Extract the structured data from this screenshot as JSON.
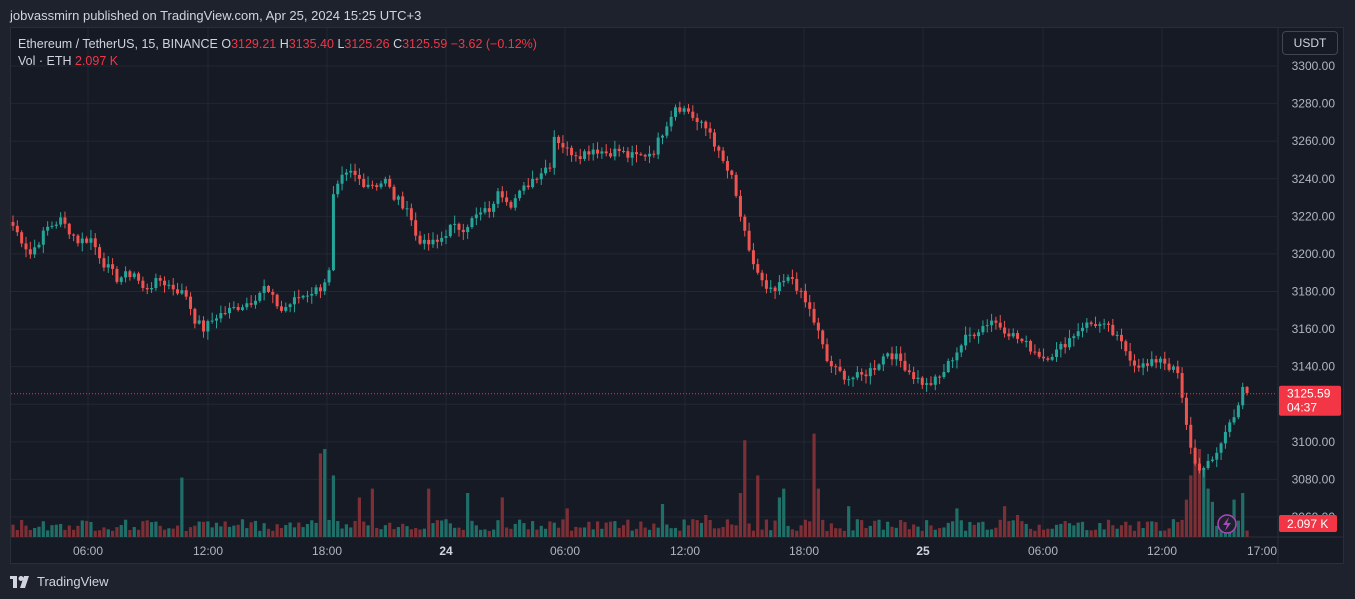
{
  "header": {
    "published_text": "jobvassmirn published on TradingView.com, Apr 25, 2024 15:25 UTC+3"
  },
  "legend": {
    "symbol": "Ethereum / TetherUS, 15, BINANCE",
    "o_label": "O",
    "o_value": "3129.21",
    "h_label": "H",
    "h_value": "3135.40",
    "l_label": "L",
    "l_value": "3125.26",
    "c_label": "C",
    "c_value": "3125.59",
    "change": "−3.62 (−0.12%)",
    "vol_label": "Vol · ETH",
    "vol_value": "2.097 K"
  },
  "toolbar": {
    "currency_label": "USDT"
  },
  "footer": {
    "brand": "TradingView"
  },
  "colors": {
    "up": "#26a69a",
    "down": "#ef5350",
    "vol_up": "#1f6f68",
    "vol_down": "#7c2f35",
    "grid": "#232733",
    "price_line": "#f23645"
  },
  "chart_data": {
    "type": "candlestick",
    "y_axis": {
      "min": 3060,
      "max": 3300,
      "ticks": [
        "3300.00",
        "3280.00",
        "3260.00",
        "3240.00",
        "3220.00",
        "3200.00",
        "3180.00",
        "3160.00",
        "3140.00",
        "3120.00",
        "3100.00",
        "3080.00",
        "3060.00"
      ]
    },
    "x_axis": {
      "ticks": [
        {
          "label": "06:00",
          "bold": false
        },
        {
          "label": "12:00",
          "bold": false
        },
        {
          "label": "18:00",
          "bold": false
        },
        {
          "label": "24",
          "bold": true
        },
        {
          "label": "06:00",
          "bold": false
        },
        {
          "label": "12:00",
          "bold": false
        },
        {
          "label": "18:00",
          "bold": false
        },
        {
          "label": "25",
          "bold": true
        },
        {
          "label": "06:00",
          "bold": false
        },
        {
          "label": "12:00",
          "bold": false
        },
        {
          "label": "17:00",
          "bold": false
        }
      ]
    },
    "current_price": {
      "value": 3125.59,
      "label": "3125.59",
      "countdown": "04:37"
    },
    "current_volume_label": "2.097 K",
    "waypoints": [
      [
        0,
        3215
      ],
      [
        4,
        3200
      ],
      [
        8,
        3214
      ],
      [
        11,
        3218
      ],
      [
        15,
        3207
      ],
      [
        18,
        3208
      ],
      [
        21,
        3195
      ],
      [
        24,
        3187
      ],
      [
        28,
        3190
      ],
      [
        30,
        3181
      ],
      [
        34,
        3186
      ],
      [
        37,
        3182
      ],
      [
        40,
        3178
      ],
      [
        42,
        3165
      ],
      [
        44,
        3160
      ],
      [
        47,
        3167
      ],
      [
        51,
        3171
      ],
      [
        55,
        3175
      ],
      [
        58,
        3182
      ],
      [
        62,
        3170
      ],
      [
        66,
        3177
      ],
      [
        71,
        3182
      ],
      [
        73,
        3190
      ],
      [
        74,
        3230
      ],
      [
        76,
        3240
      ],
      [
        78,
        3243
      ],
      [
        81,
        3238
      ],
      [
        84,
        3237
      ],
      [
        86,
        3239
      ],
      [
        88,
        3230
      ],
      [
        91,
        3225
      ],
      [
        93,
        3210
      ],
      [
        95,
        3205
      ],
      [
        98,
        3206
      ],
      [
        101,
        3214
      ],
      [
        104,
        3214
      ],
      [
        107,
        3220
      ],
      [
        111,
        3225
      ],
      [
        112,
        3235
      ],
      [
        115,
        3227
      ],
      [
        117,
        3232
      ],
      [
        120,
        3240
      ],
      [
        124,
        3248
      ],
      [
        125,
        3263
      ],
      [
        128,
        3255
      ],
      [
        131,
        3253
      ],
      [
        134,
        3256
      ],
      [
        137,
        3254
      ],
      [
        140,
        3255
      ],
      [
        142,
        3252
      ],
      [
        145,
        3252
      ],
      [
        148,
        3255
      ],
      [
        151,
        3270
      ],
      [
        153,
        3279
      ],
      [
        156,
        3276
      ],
      [
        158,
        3270
      ],
      [
        161,
        3265
      ],
      [
        163,
        3253
      ],
      [
        166,
        3240
      ],
      [
        168,
        3220
      ],
      [
        170,
        3200
      ],
      [
        172,
        3190
      ],
      [
        174,
        3180
      ],
      [
        176,
        3180
      ],
      [
        178,
        3185
      ],
      [
        180,
        3187
      ],
      [
        182,
        3178
      ],
      [
        184,
        3170
      ],
      [
        186,
        3158
      ],
      [
        188,
        3143
      ],
      [
        190,
        3138
      ],
      [
        193,
        3134
      ],
      [
        196,
        3135
      ],
      [
        199,
        3140
      ],
      [
        202,
        3148
      ],
      [
        205,
        3143
      ],
      [
        208,
        3135
      ],
      [
        211,
        3130
      ],
      [
        214,
        3134
      ],
      [
        217,
        3145
      ],
      [
        220,
        3155
      ],
      [
        223,
        3160
      ],
      [
        226,
        3165
      ],
      [
        229,
        3160
      ],
      [
        232,
        3155
      ],
      [
        235,
        3150
      ],
      [
        238,
        3145
      ],
      [
        241,
        3148
      ],
      [
        244,
        3155
      ],
      [
        247,
        3162
      ],
      [
        250,
        3163
      ],
      [
        253,
        3160
      ],
      [
        256,
        3152
      ],
      [
        259,
        3142
      ],
      [
        262,
        3140
      ],
      [
        265,
        3145
      ],
      [
        267,
        3140
      ],
      [
        269,
        3136
      ],
      [
        271,
        3108
      ],
      [
        273,
        3088
      ],
      [
        275,
        3085
      ],
      [
        277,
        3090
      ],
      [
        279,
        3100
      ],
      [
        281,
        3110
      ],
      [
        283,
        3120
      ],
      [
        284,
        3129
      ],
      [
        285,
        3126
      ]
    ],
    "volume_spikes": [
      [
        39,
        27
      ],
      [
        71,
        38
      ],
      [
        72,
        40
      ],
      [
        74,
        28
      ],
      [
        80,
        18
      ],
      [
        83,
        22
      ],
      [
        96,
        22
      ],
      [
        105,
        20
      ],
      [
        113,
        18
      ],
      [
        128,
        13
      ],
      [
        150,
        15
      ],
      [
        160,
        10
      ],
      [
        168,
        20
      ],
      [
        169,
        44
      ],
      [
        172,
        28
      ],
      [
        177,
        18
      ],
      [
        178,
        22
      ],
      [
        185,
        47
      ],
      [
        186,
        22
      ],
      [
        193,
        14
      ],
      [
        218,
        13
      ],
      [
        229,
        14
      ],
      [
        232,
        10
      ],
      [
        271,
        17
      ],
      [
        272,
        28
      ],
      [
        273,
        35
      ],
      [
        274,
        40
      ],
      [
        275,
        30
      ],
      [
        276,
        22
      ],
      [
        277,
        16
      ],
      [
        282,
        17
      ],
      [
        284,
        20
      ]
    ]
  }
}
